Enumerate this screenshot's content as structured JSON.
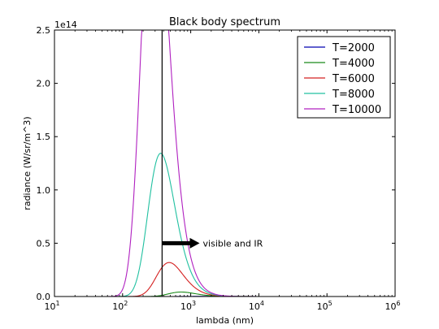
{
  "chart_data": {
    "type": "line",
    "title": "Black body spectrum",
    "xlabel": "lambda (nm)",
    "ylabel": "radiance (W/sr/m^3)",
    "y_offset_label": "1e14",
    "x_scale": "log",
    "xlim": [
      10,
      1000000
    ],
    "ylim": [
      0,
      2.5
    ],
    "grid": false,
    "legend_position": "top-right",
    "x_ticks": [
      {
        "value": 10,
        "base": "10",
        "exp": "1"
      },
      {
        "value": 100,
        "base": "10",
        "exp": "2"
      },
      {
        "value": 1000,
        "base": "10",
        "exp": "3"
      },
      {
        "value": 10000,
        "base": "10",
        "exp": "4"
      },
      {
        "value": 100000,
        "base": "10",
        "exp": "5"
      },
      {
        "value": 1000000,
        "base": "10",
        "exp": "6"
      }
    ],
    "y_ticks": [
      "0.0",
      "0.5",
      "1.0",
      "1.5",
      "2.0",
      "2.5"
    ],
    "series": [
      {
        "name": "T=2000",
        "temperature": 2000,
        "color": "#0000b0"
      },
      {
        "name": "T=4000",
        "temperature": 4000,
        "color": "#1a8a1a"
      },
      {
        "name": "T=6000",
        "temperature": 6000,
        "color": "#d42020"
      },
      {
        "name": "T=8000",
        "temperature": 8000,
        "color": "#20c0a0"
      },
      {
        "name": "T=10000",
        "temperature": 10000,
        "color": "#b020c0"
      }
    ],
    "vertical_line_x": 380,
    "annotation": {
      "text": "visible and IR",
      "arrow_start": [
        380,
        0.5
      ],
      "arrow_end": [
        1350,
        0.5
      ]
    }
  }
}
